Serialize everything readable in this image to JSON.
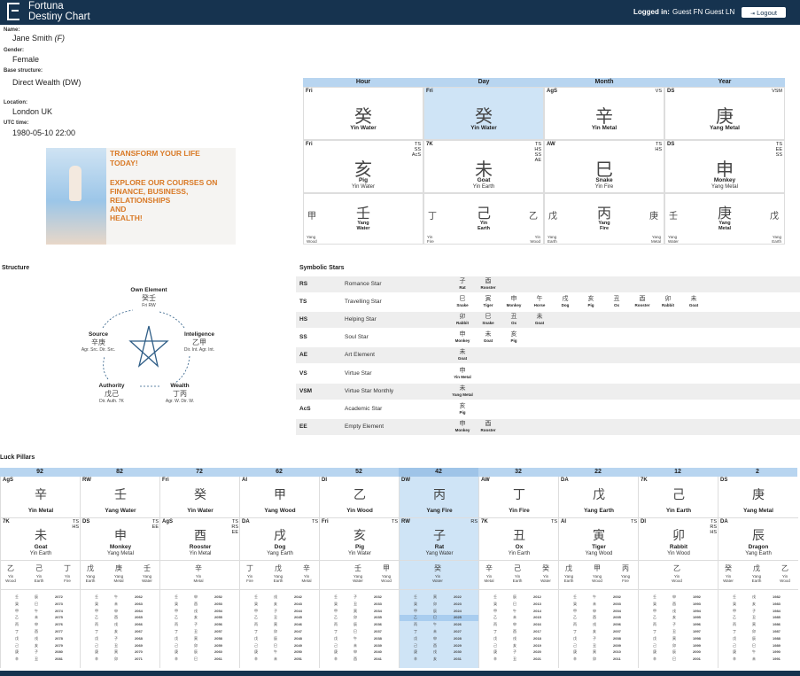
{
  "header": {
    "brand_line1": "Fortuna",
    "brand_line2": "Destiny Chart",
    "logged_in_label": "Logged in:",
    "user": "Guest FN Guest LN",
    "logout_label": "Logout",
    "logout_icon": "logout-icon"
  },
  "profile": {
    "name_label": "Name:",
    "name": "Jane Smith",
    "name_suffix": "(F)",
    "gender_label": "Gender:",
    "gender": "Female",
    "base_label": "Base structure:",
    "base": "Direct Wealth (DW)",
    "location_label": "Location:",
    "location": "London UK",
    "utc_label": "UTC time:",
    "utc": "1980-05-10 22:00"
  },
  "promo": {
    "line1": "TRANSFORM YOUR LIFE",
    "line2": "TODAY!",
    "line3": "EXPLORE OUR COURSES ON",
    "line4": "FINANCE, BUSINESS,",
    "line5": "RELATIONSHIPS",
    "line6": "AND",
    "line7": "HEALTH!"
  },
  "chart": {
    "headers": [
      "Hour",
      "Day",
      "Month",
      "Year"
    ],
    "stems": [
      {
        "tl": "Fri",
        "tr": "",
        "ch": "癸",
        "cap": "Yin Water"
      },
      {
        "tl": "Fri",
        "tr": "",
        "ch": "癸",
        "cap": "Yin Water"
      },
      {
        "tl": "AgS",
        "tr": "VS",
        "ch": "辛",
        "cap": "Yin Metal"
      },
      {
        "tl": "DS",
        "tr": "VSM",
        "ch": "庚",
        "cap": "Yang Metal"
      }
    ],
    "branches": [
      {
        "tl": "Fri",
        "tr": "TS\nSS\nAcS",
        "ch": "亥",
        "cap": "Pig",
        "sub": "Yin Water"
      },
      {
        "tl": "7K",
        "tr": "TS\nHS\nSS\nAE",
        "ch": "未",
        "cap": "Goat",
        "sub": "Yin Earth"
      },
      {
        "tl": "AW",
        "tr": "TS\nHS",
        "ch": "巳",
        "cap": "Snake",
        "sub": "Yin Fire"
      },
      {
        "tl": "DS",
        "tr": "TS\nEE\nSS",
        "ch": "申",
        "cap": "Monkey",
        "sub": "Yang Metal"
      }
    ],
    "hidden": [
      {
        "l": "甲",
        "m": "壬",
        "r": "",
        "mcap": "Yang\nWater",
        "lsub": "Yang\nWood",
        "rsub": ""
      },
      {
        "l": "丁",
        "m": "己",
        "r": "乙",
        "mcap": "Yin\nEarth",
        "lsub": "Yin\nFire",
        "rsub": "Yin\nWood"
      },
      {
        "l": "戊",
        "m": "丙",
        "r": "庚",
        "mcap": "Yang\nFire",
        "lsub": "Yang\nEarth",
        "rsub": "Yang\nMetal"
      },
      {
        "l": "壬",
        "m": "庚",
        "r": "戊",
        "mcap": "Yang\nMetal",
        "lsub": "Yang\nWater",
        "rsub": "Yang\nEarth"
      }
    ]
  },
  "structure": {
    "title": "Structure",
    "own": {
      "name": "Own Element",
      "ch": "癸壬",
      "sub": "Fri RW"
    },
    "intelligence": {
      "name": "Inteligence",
      "ch": "乙甲",
      "sub": "Dir. Int. Agr. Int."
    },
    "wealth": {
      "name": "Wealth",
      "ch": "丁丙",
      "sub": "Agr. W. Dir. W."
    },
    "authority": {
      "name": "Authority",
      "ch": "戊己",
      "sub": "Dir. Auth. 7K"
    },
    "source": {
      "name": "Source",
      "ch": "辛庚",
      "sub": "Agr. Src. Dir. Src."
    }
  },
  "stars": {
    "title": "Symbolic Stars",
    "rows": [
      {
        "code": "RS",
        "name": "Romance Star",
        "animals": [
          [
            "子",
            "Rat"
          ],
          [
            "酉",
            "Rooster"
          ]
        ]
      },
      {
        "code": "TS",
        "name": "Travelling Star",
        "animals": [
          [
            "巳",
            "Snake"
          ],
          [
            "寅",
            "Tiger"
          ],
          [
            "申",
            "Monkey"
          ],
          [
            "午",
            "Horse"
          ],
          [
            "戌",
            "Dog"
          ],
          [
            "亥",
            "Pig"
          ],
          [
            "丑",
            "Ox"
          ],
          [
            "酉",
            "Rooster"
          ],
          [
            "卯",
            "Rabbit"
          ],
          [
            "未",
            "Goat"
          ]
        ]
      },
      {
        "code": "HS",
        "name": "Helping Star",
        "animals": [
          [
            "卯",
            "Rabbit"
          ],
          [
            "巳",
            "Snake"
          ],
          [
            "丑",
            "Ox"
          ],
          [
            "未",
            "Goat"
          ]
        ]
      },
      {
        "code": "SS",
        "name": "Soul Star",
        "animals": [
          [
            "申",
            "Monkey"
          ],
          [
            "未",
            "Goat"
          ],
          [
            "亥",
            "Pig"
          ]
        ]
      },
      {
        "code": "AE",
        "name": "Art Element",
        "animals": [
          [
            "未",
            "Goat"
          ]
        ]
      },
      {
        "code": "VS",
        "name": "Virtue Star",
        "animals": [
          [
            "申",
            "Yin Metal"
          ]
        ]
      },
      {
        "code": "VSM",
        "name": "Virtue Star Monthly",
        "animals": [
          [
            "未",
            "Yang Metal"
          ]
        ]
      },
      {
        "code": "AcS",
        "name": "Academic Star",
        "animals": [
          [
            "亥",
            "Pig"
          ]
        ]
      },
      {
        "code": "EE",
        "name": "Empty Element",
        "animals": [
          [
            "申",
            "Monkey"
          ],
          [
            "酉",
            "Rooster"
          ]
        ]
      }
    ]
  },
  "luck": {
    "title": "Luck Pillars",
    "pillars": [
      {
        "age": "92",
        "tl": "AgS",
        "ch": "辛",
        "cap": "Yin Metal",
        "btl": "7K",
        "btr": "TS\nHS",
        "bch": "未",
        "bcap": "Goat",
        "bsub": "Yin Earth",
        "h": [
          [
            "乙",
            "Yin\nWood"
          ],
          [
            "己",
            "Yin\nEarth"
          ],
          [
            "丁",
            "Yin\nFire"
          ]
        ],
        "years": [
          "2072",
          "2073",
          "2074",
          "2075",
          "2076",
          "2077",
          "2078",
          "2079",
          "2080",
          "2081"
        ]
      },
      {
        "age": "82",
        "tl": "RW",
        "ch": "壬",
        "cap": "Yang Water",
        "btl": "DS",
        "btr": "TS\nEE",
        "bch": "申",
        "bcap": "Monkey",
        "bsub": "Yang Metal",
        "h": [
          [
            "戊",
            "Yang\nEarth"
          ],
          [
            "庚",
            "Yang\nMetal"
          ],
          [
            "壬",
            "Yang\nWater"
          ]
        ],
        "years": [
          "2062",
          "2063",
          "2064",
          "2065",
          "2066",
          "2067",
          "2068",
          "2069",
          "2070",
          "2071"
        ]
      },
      {
        "age": "72",
        "tl": "Fri",
        "ch": "癸",
        "cap": "Yin Water",
        "btl": "AgS",
        "btr": "TS\nRS\nEE",
        "bch": "酉",
        "bcap": "Rooster",
        "bsub": "Yin Metal",
        "h": [
          [
            "",
            ""
          ],
          [
            "辛",
            "Yin\nMetal"
          ],
          [
            "",
            ""
          ]
        ],
        "years": [
          "2052",
          "2053",
          "2054",
          "2055",
          "2056",
          "2057",
          "2058",
          "2059",
          "2060",
          "2061"
        ]
      },
      {
        "age": "62",
        "tl": "AI",
        "ch": "甲",
        "cap": "Yang Wood",
        "btl": "DA",
        "btr": "TS",
        "bch": "戌",
        "bcap": "Dog",
        "bsub": "Yang Earth",
        "h": [
          [
            "丁",
            "Yin\nFire"
          ],
          [
            "戊",
            "Yang\nEarth"
          ],
          [
            "辛",
            "Yin\nMetal"
          ]
        ],
        "years": [
          "2042",
          "2043",
          "2044",
          "2045",
          "2046",
          "2047",
          "2048",
          "2049",
          "2050",
          "2051"
        ]
      },
      {
        "age": "52",
        "tl": "DI",
        "ch": "乙",
        "cap": "Yin Wood",
        "btl": "Fri",
        "btr": "TS",
        "bch": "亥",
        "bcap": "Pig",
        "bsub": "Yin Water",
        "h": [
          [
            "",
            ""
          ],
          [
            "壬",
            "Yang\nWater"
          ],
          [
            "甲",
            "Yang\nWood"
          ]
        ],
        "years": [
          "2032",
          "2033",
          "2034",
          "2035",
          "2036",
          "2037",
          "2038",
          "2039",
          "2040",
          "2041"
        ]
      },
      {
        "age": "42",
        "tl": "DW",
        "ch": "丙",
        "cap": "Yang Fire",
        "btl": "RW",
        "btr": "RS",
        "bch": "子",
        "bcap": "Rat",
        "bsub": "Yang Water",
        "h": [
          [
            "",
            ""
          ],
          [
            "癸",
            "Yin\nWater"
          ],
          [
            "",
            ""
          ]
        ],
        "years": [
          "2022",
          "2023",
          "2024",
          "2025",
          "2026",
          "2027",
          "2028",
          "2029",
          "2030",
          "2031"
        ]
      },
      {
        "age": "32",
        "tl": "AW",
        "ch": "丁",
        "cap": "Yin Fire",
        "btl": "7K",
        "btr": "TS",
        "bch": "丑",
        "bcap": "Ox",
        "bsub": "Yin Earth",
        "h": [
          [
            "辛",
            "Yin\nMetal"
          ],
          [
            "己",
            "Yin\nEarth"
          ],
          [
            "癸",
            "Yin\nWater"
          ]
        ],
        "years": [
          "2012",
          "2013",
          "2014",
          "2015",
          "2016",
          "2017",
          "2018",
          "2019",
          "2020",
          "2021"
        ]
      },
      {
        "age": "22",
        "tl": "DA",
        "ch": "戊",
        "cap": "Yang Earth",
        "btl": "AI",
        "btr": "TS",
        "bch": "寅",
        "bcap": "Tiger",
        "bsub": "Yang Wood",
        "h": [
          [
            "戊",
            "Yang\nEarth"
          ],
          [
            "甲",
            "Yang\nWood"
          ],
          [
            "丙",
            "Yang\nFire"
          ]
        ],
        "years": [
          "2002",
          "2003",
          "2004",
          "2005",
          "2006",
          "2007",
          "2008",
          "2009",
          "2010",
          "2011"
        ]
      },
      {
        "age": "12",
        "tl": "7K",
        "ch": "己",
        "cap": "Yin Earth",
        "btl": "DI",
        "btr": "TS\nRS\nHS",
        "bch": "卯",
        "bcap": "Rabbit",
        "bsub": "Yin Wood",
        "h": [
          [
            "",
            ""
          ],
          [
            "乙",
            "Yin\nWood"
          ],
          [
            "",
            ""
          ]
        ],
        "years": [
          "1992",
          "1993",
          "1994",
          "1995",
          "1996",
          "1997",
          "1998",
          "1999",
          "2000",
          "2001"
        ]
      },
      {
        "age": "2",
        "tl": "DS",
        "ch": "庚",
        "cap": "Yang Metal",
        "btl": "DA",
        "btr": "",
        "bch": "辰",
        "bcap": "Dragon",
        "bsub": "Yang Earth",
        "h": [
          [
            "癸",
            "Yin\nWater"
          ],
          [
            "戊",
            "Yang\nEarth"
          ],
          [
            "乙",
            "Yin\nWood"
          ]
        ],
        "years": [
          "1982",
          "1983",
          "1984",
          "1985",
          "1986",
          "1987",
          "1988",
          "1989",
          "1990",
          "1991"
        ]
      }
    ],
    "highlight_age": "42",
    "highlight_year": "2025",
    "year_stems": [
      [
        "壬",
        "癸",
        "甲",
        "乙",
        "丙",
        "丁",
        "戊",
        "己",
        "庚",
        "辛"
      ],
      [
        "壬",
        "癸",
        "甲",
        "乙",
        "丙",
        "丁",
        "戊",
        "己",
        "庚",
        "辛"
      ],
      [
        "壬",
        "癸",
        "甲",
        "乙",
        "丙",
        "丁",
        "戊",
        "己",
        "庚",
        "辛"
      ],
      [
        "壬",
        "癸",
        "甲",
        "乙",
        "丙",
        "丁",
        "戊",
        "己",
        "庚",
        "辛"
      ],
      [
        "壬",
        "癸",
        "甲",
        "乙",
        "丙",
        "丁",
        "戊",
        "己",
        "庚",
        "辛"
      ],
      [
        "壬",
        "癸",
        "甲",
        "乙",
        "丙",
        "丁",
        "戊",
        "己",
        "庚",
        "辛"
      ],
      [
        "壬",
        "癸",
        "甲",
        "乙",
        "丙",
        "丁",
        "戊",
        "己",
        "庚",
        "辛"
      ],
      [
        "壬",
        "癸",
        "甲",
        "乙",
        "丙",
        "丁",
        "戊",
        "己",
        "庚",
        "辛"
      ],
      [
        "壬",
        "癸",
        "甲",
        "乙",
        "丙",
        "丁",
        "戊",
        "己",
        "庚",
        "辛"
      ],
      [
        "壬",
        "癸",
        "甲",
        "乙",
        "丙",
        "丁",
        "戊",
        "己",
        "庚",
        "辛"
      ]
    ],
    "year_branches": [
      [
        "辰",
        "巳",
        "午",
        "未",
        "申",
        "酉",
        "戌",
        "亥",
        "子",
        "丑"
      ],
      [
        "午",
        "未",
        "申",
        "酉",
        "戌",
        "亥",
        "子",
        "丑",
        "寅",
        "卯"
      ],
      [
        "申",
        "酉",
        "戌",
        "亥",
        "子",
        "丑",
        "寅",
        "卯",
        "辰",
        "巳"
      ],
      [
        "戌",
        "亥",
        "子",
        "丑",
        "寅",
        "卯",
        "辰",
        "巳",
        "午",
        "未"
      ],
      [
        "子",
        "丑",
        "寅",
        "卯",
        "辰",
        "巳",
        "午",
        "未",
        "申",
        "酉"
      ],
      [
        "寅",
        "卯",
        "辰",
        "巳",
        "午",
        "未",
        "申",
        "酉",
        "戌",
        "亥"
      ],
      [
        "辰",
        "巳",
        "午",
        "未",
        "申",
        "酉",
        "戌",
        "亥",
        "子",
        "丑"
      ],
      [
        "午",
        "未",
        "申",
        "酉",
        "戌",
        "亥",
        "子",
        "丑",
        "寅",
        "卯"
      ],
      [
        "申",
        "酉",
        "戌",
        "亥",
        "子",
        "丑",
        "寅",
        "卯",
        "辰",
        "巳"
      ],
      [
        "戌",
        "亥",
        "子",
        "丑",
        "寅",
        "卯",
        "辰",
        "巳",
        "午",
        "未"
      ]
    ]
  }
}
